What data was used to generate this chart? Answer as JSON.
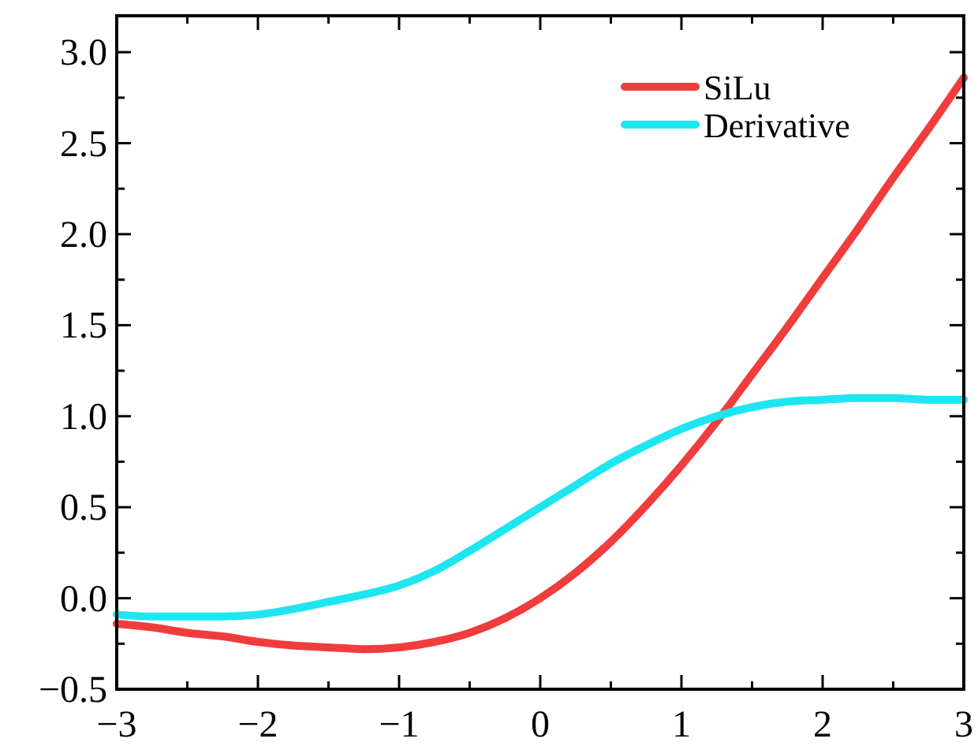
{
  "chart_data": {
    "type": "line",
    "x": [
      -3,
      -2.75,
      -2.5,
      -2.25,
      -2,
      -1.75,
      -1.5,
      -1.25,
      -1,
      -0.75,
      -0.5,
      -0.25,
      0,
      0.25,
      0.5,
      0.75,
      1,
      1.25,
      1.5,
      1.75,
      2,
      2.25,
      2.5,
      2.75,
      3
    ],
    "series": [
      {
        "name": "SiLu",
        "color": "#f03c3c",
        "values": [
          -0.14,
          -0.16,
          -0.19,
          -0.21,
          -0.24,
          -0.26,
          -0.27,
          -0.28,
          -0.27,
          -0.24,
          -0.19,
          -0.11,
          0,
          0.14,
          0.31,
          0.51,
          0.73,
          0.97,
          1.23,
          1.49,
          1.76,
          2.03,
          2.31,
          2.58,
          2.86
        ]
      },
      {
        "name": "Derivative",
        "color": "#1ee6f0",
        "values": [
          -0.09,
          -0.1,
          -0.1,
          -0.1,
          -0.09,
          -0.06,
          -0.02,
          0.02,
          0.07,
          0.15,
          0.26,
          0.38,
          0.5,
          0.62,
          0.74,
          0.84,
          0.93,
          1.0,
          1.05,
          1.08,
          1.09,
          1.1,
          1.1,
          1.09,
          1.09
        ]
      }
    ],
    "xlim": [
      -3,
      3
    ],
    "ylim": [
      -0.5,
      3.2
    ],
    "xticks": [
      -3,
      {
        "value": -2.5,
        "label": null
      },
      -2,
      {
        "value": -1.5,
        "label": null
      },
      -1,
      {
        "value": -0.5,
        "label": null
      },
      0,
      {
        "value": 0.5,
        "label": null
      },
      1,
      {
        "value": 1.5,
        "label": null
      },
      2,
      {
        "value": 2.5,
        "label": null
      },
      3
    ],
    "yticks": [
      {
        "value": -0.5,
        "label": "−0.5"
      },
      {
        "value": -0.25,
        "label": null
      },
      {
        "value": 0,
        "label": "0.0"
      },
      {
        "value": 0.25,
        "label": null
      },
      {
        "value": 0.5,
        "label": "0.5"
      },
      {
        "value": 0.75,
        "label": null
      },
      {
        "value": 1,
        "label": "1.0"
      },
      {
        "value": 1.25,
        "label": null
      },
      {
        "value": 1.5,
        "label": "1.5"
      },
      {
        "value": 1.75,
        "label": null
      },
      {
        "value": 2,
        "label": "2.0"
      },
      {
        "value": 2.25,
        "label": null
      },
      {
        "value": 2.5,
        "label": "2.5"
      },
      {
        "value": 2.75,
        "label": null
      },
      {
        "value": 3,
        "label": "3.0"
      }
    ],
    "grid": false,
    "legend": "top right",
    "line_style": "solid",
    "marker": "none"
  }
}
